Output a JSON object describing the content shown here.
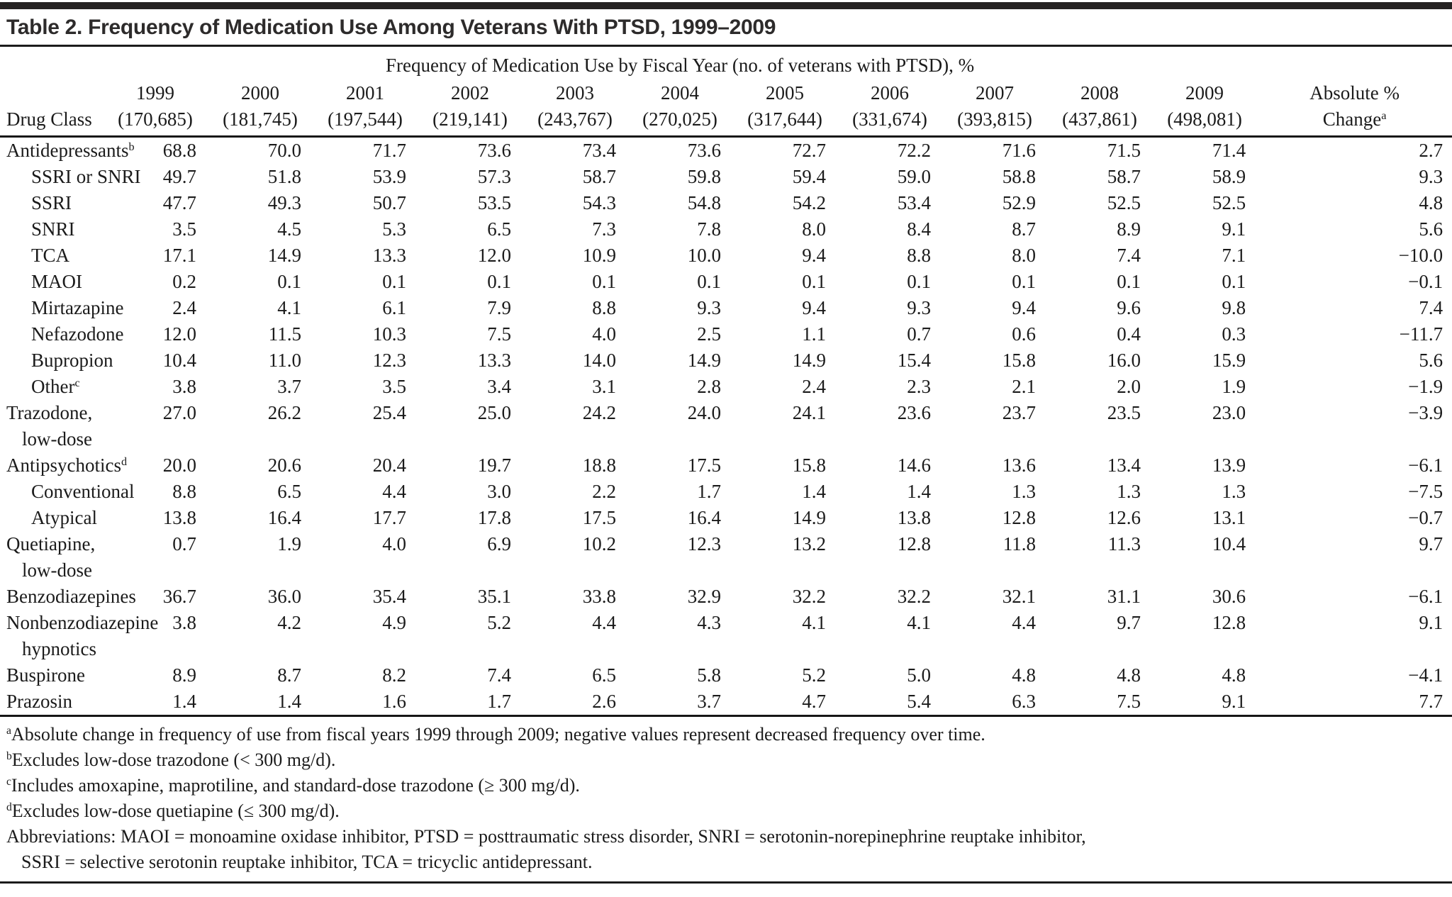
{
  "title": "Table 2. Frequency of Medication Use Among Veterans With PTSD, 1999–2009",
  "table": {
    "spanner": "Frequency of Medication Use by Fiscal Year (no. of veterans with PTSD), %",
    "row_header": "Drug Class",
    "change_header": {
      "line1": "Absolute %",
      "line2": "Change",
      "sup": "a"
    },
    "year_columns": [
      {
        "year": "1999",
        "n": "(170,685)"
      },
      {
        "year": "2000",
        "n": "(181,745)"
      },
      {
        "year": "2001",
        "n": "(197,544)"
      },
      {
        "year": "2002",
        "n": "(219,141)"
      },
      {
        "year": "2003",
        "n": "(243,767)"
      },
      {
        "year": "2004",
        "n": "(270,025)"
      },
      {
        "year": "2005",
        "n": "(317,644)"
      },
      {
        "year": "2006",
        "n": "(331,674)"
      },
      {
        "year": "2007",
        "n": "(393,815)"
      },
      {
        "year": "2008",
        "n": "(437,861)"
      },
      {
        "year": "2009",
        "n": "(498,081)"
      }
    ],
    "rows": [
      {
        "label": "Antidepressants",
        "sup": "b",
        "label2": "",
        "indent": 0,
        "values": [
          "68.8",
          "70.0",
          "71.7",
          "73.6",
          "73.4",
          "73.6",
          "72.7",
          "72.2",
          "71.6",
          "71.5",
          "71.4"
        ],
        "change": "2.7"
      },
      {
        "label": "SSRI or SNRI",
        "sup": "",
        "label2": "",
        "indent": 1,
        "values": [
          "49.7",
          "51.8",
          "53.9",
          "57.3",
          "58.7",
          "59.8",
          "59.4",
          "59.0",
          "58.8",
          "58.7",
          "58.9"
        ],
        "change": "9.3"
      },
      {
        "label": "SSRI",
        "sup": "",
        "label2": "",
        "indent": 1,
        "values": [
          "47.7",
          "49.3",
          "50.7",
          "53.5",
          "54.3",
          "54.8",
          "54.2",
          "53.4",
          "52.9",
          "52.5",
          "52.5"
        ],
        "change": "4.8"
      },
      {
        "label": "SNRI",
        "sup": "",
        "label2": "",
        "indent": 1,
        "values": [
          "3.5",
          "4.5",
          "5.3",
          "6.5",
          "7.3",
          "7.8",
          "8.0",
          "8.4",
          "8.7",
          "8.9",
          "9.1"
        ],
        "change": "5.6"
      },
      {
        "label": "TCA",
        "sup": "",
        "label2": "",
        "indent": 1,
        "values": [
          "17.1",
          "14.9",
          "13.3",
          "12.0",
          "10.9",
          "10.0",
          "9.4",
          "8.8",
          "8.0",
          "7.4",
          "7.1"
        ],
        "change": "−10.0"
      },
      {
        "label": "MAOI",
        "sup": "",
        "label2": "",
        "indent": 1,
        "values": [
          "0.2",
          "0.1",
          "0.1",
          "0.1",
          "0.1",
          "0.1",
          "0.1",
          "0.1",
          "0.1",
          "0.1",
          "0.1"
        ],
        "change": "−0.1"
      },
      {
        "label": "Mirtazapine",
        "sup": "",
        "label2": "",
        "indent": 1,
        "values": [
          "2.4",
          "4.1",
          "6.1",
          "7.9",
          "8.8",
          "9.3",
          "9.4",
          "9.3",
          "9.4",
          "9.6",
          "9.8"
        ],
        "change": "7.4"
      },
      {
        "label": "Nefazodone",
        "sup": "",
        "label2": "",
        "indent": 1,
        "values": [
          "12.0",
          "11.5",
          "10.3",
          "7.5",
          "4.0",
          "2.5",
          "1.1",
          "0.7",
          "0.6",
          "0.4",
          "0.3"
        ],
        "change": "−11.7"
      },
      {
        "label": "Bupropion",
        "sup": "",
        "label2": "",
        "indent": 1,
        "values": [
          "10.4",
          "11.0",
          "12.3",
          "13.3",
          "14.0",
          "14.9",
          "14.9",
          "15.4",
          "15.8",
          "16.0",
          "15.9"
        ],
        "change": "5.6"
      },
      {
        "label": "Other",
        "sup": "c",
        "label2": "",
        "indent": 1,
        "values": [
          "3.8",
          "3.7",
          "3.5",
          "3.4",
          "3.1",
          "2.8",
          "2.4",
          "2.3",
          "2.1",
          "2.0",
          "1.9"
        ],
        "change": "−1.9"
      },
      {
        "label": "Trazodone,",
        "sup": "",
        "label2": "low-dose",
        "indent": 0,
        "values": [
          "27.0",
          "26.2",
          "25.4",
          "25.0",
          "24.2",
          "24.0",
          "24.1",
          "23.6",
          "23.7",
          "23.5",
          "23.0"
        ],
        "change": "−3.9"
      },
      {
        "label": "Antipsychotics",
        "sup": "d",
        "label2": "",
        "indent": 0,
        "values": [
          "20.0",
          "20.6",
          "20.4",
          "19.7",
          "18.8",
          "17.5",
          "15.8",
          "14.6",
          "13.6",
          "13.4",
          "13.9"
        ],
        "change": "−6.1"
      },
      {
        "label": "Conventional",
        "sup": "",
        "label2": "",
        "indent": 1,
        "values": [
          "8.8",
          "6.5",
          "4.4",
          "3.0",
          "2.2",
          "1.7",
          "1.4",
          "1.4",
          "1.3",
          "1.3",
          "1.3"
        ],
        "change": "−7.5"
      },
      {
        "label": "Atypical",
        "sup": "",
        "label2": "",
        "indent": 1,
        "values": [
          "13.8",
          "16.4",
          "17.7",
          "17.8",
          "17.5",
          "16.4",
          "14.9",
          "13.8",
          "12.8",
          "12.6",
          "13.1"
        ],
        "change": "−0.7"
      },
      {
        "label": "Quetiapine,",
        "sup": "",
        "label2": "low-dose",
        "indent": 0,
        "values": [
          "0.7",
          "1.9",
          "4.0",
          "6.9",
          "10.2",
          "12.3",
          "13.2",
          "12.8",
          "11.8",
          "11.3",
          "10.4"
        ],
        "change": "9.7"
      },
      {
        "label": "Benzodiazepines",
        "sup": "",
        "label2": "",
        "indent": 0,
        "values": [
          "36.7",
          "36.0",
          "35.4",
          "35.1",
          "33.8",
          "32.9",
          "32.2",
          "32.2",
          "32.1",
          "31.1",
          "30.6"
        ],
        "change": "−6.1"
      },
      {
        "label": "Nonbenzodiazepine",
        "sup": "",
        "label2": "hypnotics",
        "indent": 0,
        "values": [
          "3.8",
          "4.2",
          "4.9",
          "5.2",
          "4.4",
          "4.3",
          "4.1",
          "4.1",
          "4.4",
          "9.7",
          "12.8"
        ],
        "change": "9.1"
      },
      {
        "label": "Buspirone",
        "sup": "",
        "label2": "",
        "indent": 0,
        "values": [
          "8.9",
          "8.7",
          "8.2",
          "7.4",
          "6.5",
          "5.8",
          "5.2",
          "5.0",
          "4.8",
          "4.8",
          "4.8"
        ],
        "change": "−4.1"
      },
      {
        "label": "Prazosin",
        "sup": "",
        "label2": "",
        "indent": 0,
        "values": [
          "1.4",
          "1.4",
          "1.6",
          "1.7",
          "2.6",
          "3.7",
          "4.7",
          "5.4",
          "6.3",
          "7.5",
          "9.1"
        ],
        "change": "7.7"
      }
    ]
  },
  "footnotes": [
    {
      "sup": "a",
      "text": "Absolute change in frequency of use from fiscal years 1999 through 2009; negative values represent decreased frequency over time."
    },
    {
      "sup": "b",
      "text": "Excludes low-dose trazodone (< 300 mg/d)."
    },
    {
      "sup": "c",
      "text": "Includes amoxapine, maprotiline, and standard-dose trazodone (≥ 300 mg/d)."
    },
    {
      "sup": "d",
      "text": "Excludes low-dose quetiapine (≤ 300 mg/d)."
    },
    {
      "sup": "",
      "text": "Abbreviations: MAOI = monoamine oxidase inhibitor, PTSD = posttraumatic stress disorder, SNRI = serotonin-norepinephrine reuptake inhibitor,",
      "text2": "SSRI = selective serotonin reuptake inhibitor, TCA = tricyclic antidepressant."
    }
  ]
}
